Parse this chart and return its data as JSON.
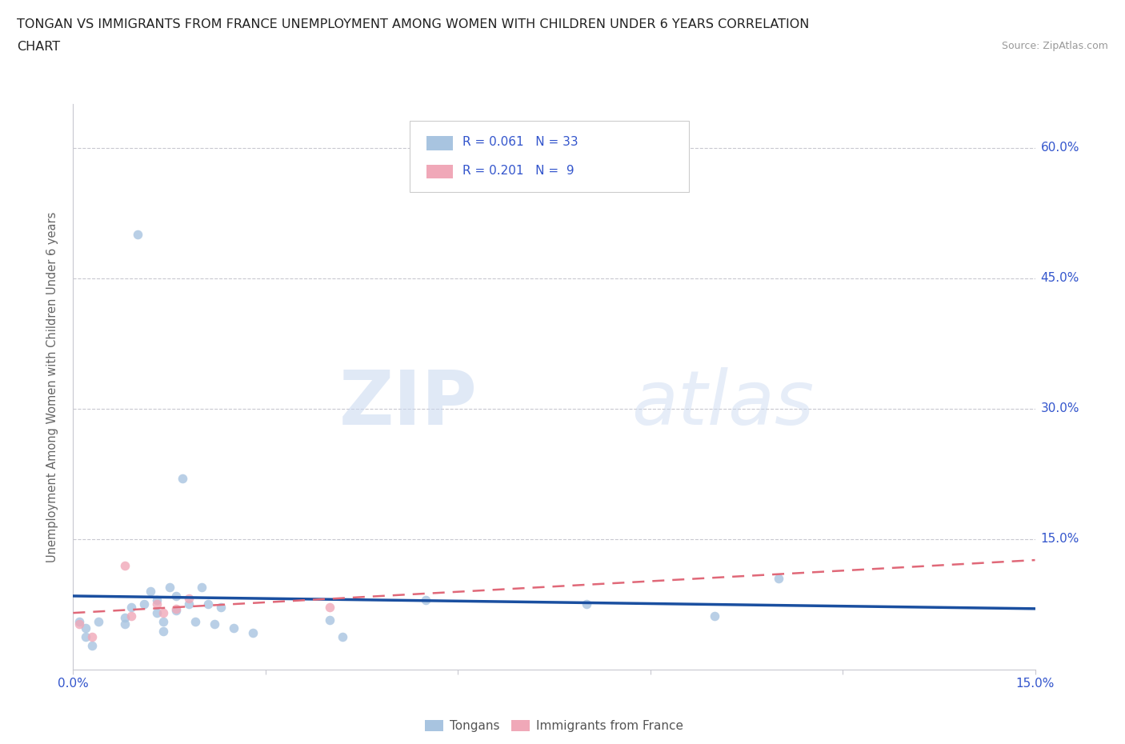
{
  "title_line1": "TONGAN VS IMMIGRANTS FROM FRANCE UNEMPLOYMENT AMONG WOMEN WITH CHILDREN UNDER 6 YEARS CORRELATION",
  "title_line2": "CHART",
  "source": "Source: ZipAtlas.com",
  "ylabel": "Unemployment Among Women with Children Under 6 years",
  "xlim": [
    0.0,
    0.15
  ],
  "ylim": [
    -0.005,
    0.65
  ],
  "plot_ylim": [
    0.0,
    0.65
  ],
  "xticks": [
    0.0,
    0.03,
    0.06,
    0.09,
    0.12,
    0.15
  ],
  "xtick_labels": [
    "0.0%",
    "",
    "",
    "",
    "",
    "15.0%"
  ],
  "ytick_positions": [
    0.15,
    0.3,
    0.45,
    0.6
  ],
  "ytick_labels": [
    "15.0%",
    "30.0%",
    "45.0%",
    "60.0%"
  ],
  "grid_color": "#c8c8d0",
  "background_color": "#ffffff",
  "tongan_color": "#a8c4e0",
  "france_color": "#f0a8b8",
  "line_tongan_color": "#1a4fa0",
  "line_france_color": "#e06878",
  "watermark_zip": "ZIP",
  "watermark_atlas": "atlas",
  "legend_r_tongan": "R = 0.061",
  "legend_n_tongan": "N = 33",
  "legend_r_france": "R = 0.201",
  "legend_n_france": "N =  9",
  "tongan_x": [
    0.001,
    0.002,
    0.002,
    0.003,
    0.004,
    0.008,
    0.008,
    0.009,
    0.01,
    0.011,
    0.012,
    0.013,
    0.013,
    0.014,
    0.014,
    0.015,
    0.016,
    0.016,
    0.017,
    0.018,
    0.019,
    0.02,
    0.021,
    0.022,
    0.023,
    0.025,
    0.028,
    0.04,
    0.042,
    0.055,
    0.08,
    0.1,
    0.11
  ],
  "tongan_y": [
    0.055,
    0.048,
    0.038,
    0.028,
    0.055,
    0.06,
    0.052,
    0.072,
    0.5,
    0.075,
    0.09,
    0.08,
    0.065,
    0.055,
    0.044,
    0.095,
    0.085,
    0.068,
    0.22,
    0.075,
    0.055,
    0.095,
    0.075,
    0.052,
    0.072,
    0.048,
    0.042,
    0.057,
    0.038,
    0.08,
    0.075,
    0.062,
    0.105
  ],
  "france_x": [
    0.001,
    0.003,
    0.008,
    0.009,
    0.013,
    0.014,
    0.016,
    0.018,
    0.04
  ],
  "france_y": [
    0.052,
    0.038,
    0.12,
    0.062,
    0.075,
    0.065,
    0.07,
    0.082,
    0.072
  ],
  "scatter_size": 70,
  "right_label_color": "#3355cc",
  "tick_label_color": "#3355cc"
}
